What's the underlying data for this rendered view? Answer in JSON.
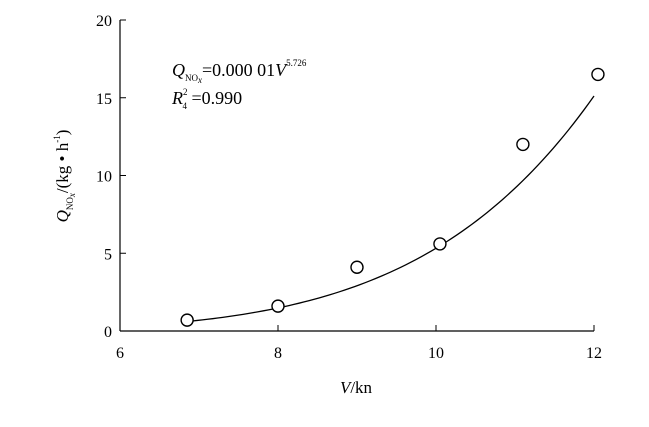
{
  "chart_data": {
    "type": "scatter",
    "title": "",
    "xlabel": {
      "var": "V",
      "unit": "/kn"
    },
    "ylabel": {
      "var": "Q",
      "sub": "NO",
      "subsub": "x",
      "unit_open": "/(kg • h",
      "unit_sup": "-1",
      "unit_close": ")"
    },
    "xlim": [
      6,
      12
    ],
    "ylim": [
      0,
      20
    ],
    "xticks": [
      "6",
      "8",
      "10",
      "12"
    ],
    "yticks": [
      "0",
      "5",
      "10",
      "15",
      "20"
    ],
    "series": [
      {
        "points": [
          {
            "x": 6.85,
            "y": 0.7
          },
          {
            "x": 8.0,
            "y": 1.6
          },
          {
            "x": 9.0,
            "y": 4.1
          },
          {
            "x": 10.05,
            "y": 5.6
          },
          {
            "x": 11.1,
            "y": 12.0
          },
          {
            "x": 12.05,
            "y": 16.5
          }
        ]
      }
    ],
    "fit": {
      "coef": 1e-05,
      "exponent": 5.726,
      "x_range": [
        6.85,
        12.0
      ]
    },
    "annotation": {
      "eq_lhs": "Q",
      "eq_sub": "NO",
      "eq_subsub": "x",
      "eq_rhs": "=0.000 01",
      "eq_var": "V",
      "eq_exp": "5.726",
      "r2_lhs": "R",
      "r2_sup": "2",
      "r2_sub": "4",
      "r2_rhs": " =0.990"
    }
  }
}
